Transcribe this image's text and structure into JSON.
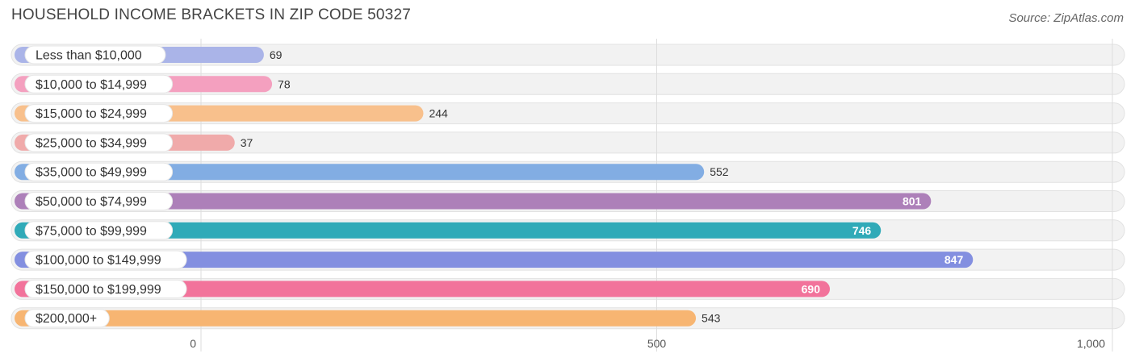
{
  "title": "HOUSEHOLD INCOME BRACKETS IN ZIP CODE 50327",
  "source": "Source: ZipAtlas.com",
  "chart_data": {
    "type": "bar",
    "orientation": "horizontal",
    "categories": [
      "Less than $10,000",
      "$10,000 to $14,999",
      "$15,000 to $24,999",
      "$25,000 to $34,999",
      "$35,000 to $49,999",
      "$50,000 to $74,999",
      "$75,000 to $99,999",
      "$100,000 to $149,999",
      "$150,000 to $199,999",
      "$200,000+"
    ],
    "values": [
      69,
      78,
      244,
      37,
      552,
      801,
      746,
      847,
      690,
      543
    ],
    "value_labels": [
      "69",
      "78",
      "244",
      "37",
      "552",
      "801",
      "746",
      "847",
      "690",
      "543"
    ],
    "colors": [
      "#aab4e8",
      "#f4a0bf",
      "#f8c08c",
      "#f0aaaa",
      "#82ade3",
      "#ad80b9",
      "#30aab8",
      "#838fe0",
      "#f2739b",
      "#f7b572"
    ],
    "xlim": [
      0,
      1000
    ],
    "xticks": [
      0,
      500,
      1000
    ],
    "xtick_labels": [
      "0",
      "500",
      "1,000"
    ],
    "grid": true,
    "xlabel": "",
    "ylabel": ""
  }
}
